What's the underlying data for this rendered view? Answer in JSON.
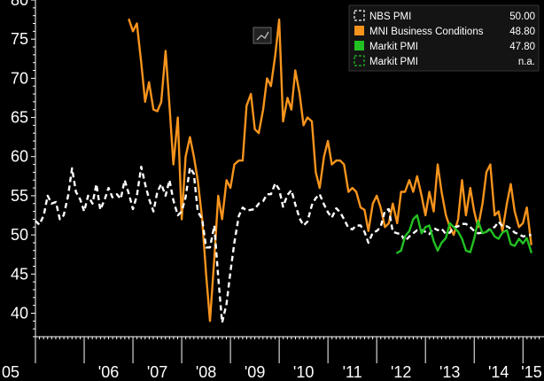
{
  "chart_data": {
    "type": "line",
    "title": "",
    "xlabel": "",
    "ylabel": "",
    "ylim": [
      37,
      80
    ],
    "xlim": [
      2005.0,
      2015.25
    ],
    "grid": false,
    "legend_position": "top-right",
    "y_ticks": [
      40,
      45,
      50,
      55,
      60,
      65,
      70,
      75,
      80
    ],
    "y_tick_labels": [
      "40",
      "45",
      "50",
      "55",
      "60",
      "65",
      "70",
      "75",
      "80"
    ],
    "x_ticks": [
      2005,
      2006,
      2007,
      2008,
      2009,
      2010,
      2011,
      2012,
      2013,
      2014,
      2015
    ],
    "x_tick_labels": [
      "05",
      "'06",
      "'07",
      "'08",
      "'09",
      "'10",
      "'11",
      "'12",
      "'13",
      "'14",
      "'15"
    ],
    "colors": {
      "background": "#000000",
      "axis": "#ffffff",
      "nbs": "#ffffff",
      "mni": "#f7941d",
      "markit": "#22c122"
    },
    "series": [
      {
        "name": "NBS PMI",
        "last_value": "50.00",
        "color": "#ffffff",
        "style": "dashed",
        "x": [
          2005.0,
          2005.08,
          2005.17,
          2005.25,
          2005.33,
          2005.42,
          2005.5,
          2005.58,
          2005.67,
          2005.75,
          2005.83,
          2005.92,
          2006.0,
          2006.08,
          2006.17,
          2006.25,
          2006.33,
          2006.42,
          2006.5,
          2006.58,
          2006.67,
          2006.75,
          2006.83,
          2006.92,
          2007.0,
          2007.08,
          2007.17,
          2007.25,
          2007.33,
          2007.42,
          2007.5,
          2007.58,
          2007.67,
          2007.75,
          2007.83,
          2007.92,
          2008.0,
          2008.08,
          2008.17,
          2008.25,
          2008.33,
          2008.42,
          2008.5,
          2008.58,
          2008.67,
          2008.75,
          2008.83,
          2008.92,
          2009.0,
          2009.08,
          2009.17,
          2009.25,
          2009.33,
          2009.42,
          2009.5,
          2009.58,
          2009.67,
          2009.75,
          2009.83,
          2009.92,
          2010.0,
          2010.08,
          2010.17,
          2010.25,
          2010.33,
          2010.42,
          2010.5,
          2010.58,
          2010.67,
          2010.75,
          2010.83,
          2010.92,
          2011.0,
          2011.08,
          2011.17,
          2011.25,
          2011.33,
          2011.42,
          2011.5,
          2011.58,
          2011.67,
          2011.75,
          2011.83,
          2011.92,
          2012.0,
          2012.08,
          2012.17,
          2012.25,
          2012.33,
          2012.42,
          2012.5,
          2012.58,
          2012.67,
          2012.75,
          2012.83,
          2012.92,
          2013.0,
          2013.08,
          2013.17,
          2013.25,
          2013.33,
          2013.42,
          2013.5,
          2013.58,
          2013.67,
          2013.75,
          2013.83,
          2013.92,
          2014.0,
          2014.08,
          2014.17,
          2014.25,
          2014.33,
          2014.42,
          2014.5,
          2014.58,
          2014.67,
          2014.75,
          2014.83,
          2014.92,
          2015.0,
          2015.08,
          2015.17
        ],
        "values": [
          51.8,
          51.3,
          52.5,
          55.0,
          54.0,
          54.2,
          52.0,
          52.5,
          55.0,
          58.5,
          55.5,
          54.5,
          53.0,
          55.0,
          54.0,
          56.5,
          53.2,
          54.5,
          56.0,
          54.8,
          55.2,
          54.6,
          57.0,
          55.2,
          53.3,
          55.0,
          58.7,
          56.5,
          54.6,
          53.0,
          55.5,
          56.5,
          55.0,
          57.0,
          54.4,
          52.5,
          53.0,
          54.8,
          58.6,
          57.8,
          53.0,
          52.0,
          48.4,
          48.4,
          51.2,
          44.6,
          38.8,
          41.2,
          45.3,
          49.0,
          52.4,
          53.5,
          53.1,
          53.2,
          53.3,
          54.0,
          54.3,
          55.2,
          55.2,
          56.6,
          55.8,
          53.6,
          55.1,
          55.7,
          53.9,
          52.1,
          51.2,
          51.7,
          53.8,
          54.7,
          55.2,
          53.9,
          52.9,
          52.2,
          53.4,
          52.9,
          52.0,
          50.9,
          50.7,
          51.2,
          51.2,
          50.4,
          49.0,
          50.3,
          50.5,
          51.0,
          53.1,
          53.3,
          50.4,
          50.2,
          50.1,
          49.2,
          49.8,
          50.2,
          50.6,
          50.6,
          50.4,
          50.1,
          50.9,
          50.6,
          50.8,
          50.1,
          50.3,
          51.0,
          51.1,
          51.4,
          51.4,
          51.0,
          50.5,
          50.2,
          50.3,
          50.4,
          50.8,
          51.0,
          51.7,
          51.1,
          51.1,
          50.8,
          50.3,
          50.1,
          49.8,
          49.9,
          50.0
        ]
      },
      {
        "name": "MNI Business Conditions",
        "last_value": "48.80",
        "color": "#f7941d",
        "style": "solid",
        "x": [
          2006.92,
          2007.0,
          2007.08,
          2007.17,
          2007.25,
          2007.33,
          2007.42,
          2007.5,
          2007.58,
          2007.67,
          2007.75,
          2007.83,
          2007.92,
          2008.0,
          2008.08,
          2008.17,
          2008.25,
          2008.33,
          2008.42,
          2008.5,
          2008.58,
          2008.67,
          2008.75,
          2008.83,
          2008.92,
          2009.0,
          2009.08,
          2009.17,
          2009.25,
          2009.33,
          2009.42,
          2009.5,
          2009.58,
          2009.67,
          2009.75,
          2009.83,
          2009.92,
          2010.0,
          2010.08,
          2010.17,
          2010.25,
          2010.33,
          2010.42,
          2010.5,
          2010.58,
          2010.67,
          2010.75,
          2010.83,
          2010.92,
          2011.0,
          2011.08,
          2011.17,
          2011.25,
          2011.33,
          2011.42,
          2011.5,
          2011.58,
          2011.67,
          2011.75,
          2011.83,
          2011.92,
          2012.0,
          2012.08,
          2012.17,
          2012.25,
          2012.33,
          2012.42,
          2012.5,
          2012.58,
          2012.67,
          2012.75,
          2012.83,
          2012.92,
          2013.0,
          2013.08,
          2013.17,
          2013.25,
          2013.33,
          2013.42,
          2013.5,
          2013.58,
          2013.67,
          2013.75,
          2013.83,
          2013.92,
          2014.0,
          2014.08,
          2014.17,
          2014.25,
          2014.33,
          2014.42,
          2014.5,
          2014.58,
          2014.67,
          2014.75,
          2014.83,
          2014.92,
          2015.0,
          2015.08,
          2015.17
        ],
        "values": [
          77.5,
          76.0,
          77.0,
          72.0,
          67.0,
          69.5,
          66.0,
          65.8,
          67.0,
          73.5,
          66.5,
          59.0,
          65.0,
          52.0,
          60.0,
          62.5,
          60.0,
          57.0,
          52.0,
          45.0,
          39.0,
          47.0,
          55.0,
          52.0,
          57.0,
          56.0,
          59.0,
          59.5,
          59.5,
          66.5,
          68.0,
          63.5,
          63.0,
          66.0,
          70.0,
          69.0,
          73.0,
          77.5,
          64.5,
          67.5,
          66.0,
          71.0,
          68.0,
          64.0,
          65.0,
          64.5,
          58.0,
          56.0,
          60.0,
          62.0,
          59.0,
          59.5,
          59.5,
          59.0,
          55.5,
          56.0,
          55.5,
          53.5,
          53.2,
          50.5,
          54.0,
          55.0,
          53.5,
          51.0,
          51.5,
          54.0,
          51.5,
          55.5,
          55.5,
          57.0,
          55.5,
          57.5,
          55.0,
          52.5,
          55.5,
          53.0,
          59.0,
          55.5,
          52.5,
          51.0,
          50.0,
          52.0,
          57.0,
          52.5,
          56.0,
          53.0,
          51.0,
          54.0,
          58.0,
          59.0,
          52.5,
          53.0,
          50.5,
          54.0,
          56.5,
          53.0,
          51.0,
          51.5,
          53.5,
          48.8
        ]
      },
      {
        "name": "Markit PMI",
        "last_value": "47.80",
        "color": "#22c122",
        "style": "solid",
        "x": [
          2012.42,
          2012.5,
          2012.58,
          2012.67,
          2012.75,
          2012.83,
          2012.92,
          2013.0,
          2013.08,
          2013.17,
          2013.25,
          2013.33,
          2013.42,
          2013.5,
          2013.58,
          2013.67,
          2013.75,
          2013.83,
          2013.92,
          2014.0,
          2014.08,
          2014.17,
          2014.25,
          2014.33,
          2014.42,
          2014.5,
          2014.58,
          2014.67,
          2014.75,
          2014.83,
          2014.92,
          2015.0,
          2015.08,
          2015.17
        ],
        "values": [
          47.7,
          48.0,
          49.8,
          50.5,
          52.0,
          52.5,
          50.2,
          51.0,
          51.2,
          49.2,
          48.0,
          49.0,
          49.6,
          51.5,
          51.0,
          50.4,
          49.5,
          48.0,
          47.8,
          49.5,
          51.8,
          50.2,
          50.4,
          50.7,
          49.8,
          49.5,
          50.3,
          50.6,
          48.8,
          48.6,
          49.5,
          48.9,
          49.6,
          47.8
        ]
      },
      {
        "name": "Markit PMI",
        "last_value": "n.a.",
        "color": "#22c122",
        "style": "dashed",
        "x": [],
        "values": []
      }
    ]
  }
}
